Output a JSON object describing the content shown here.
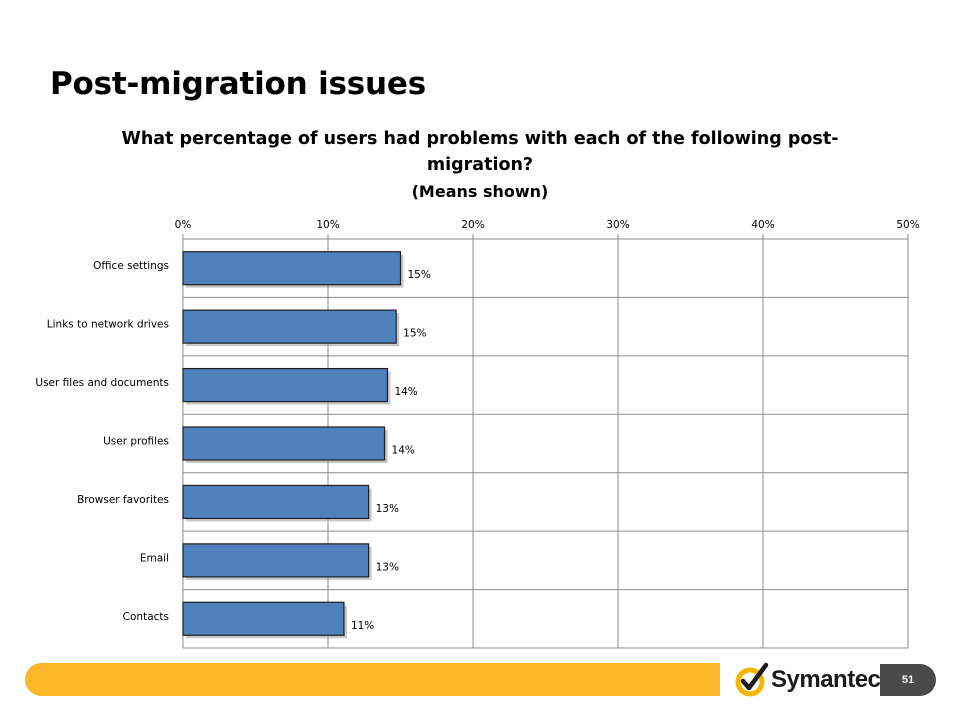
{
  "slide": {
    "title": "Post-migration issues",
    "page_number": "51"
  },
  "logo": {
    "brand": "Symantec",
    "trademark": ".",
    "icon": "checkmark-logo-icon"
  },
  "colors": {
    "bar_fill": "#4f81bd",
    "bar_border": "#1f1f1f",
    "grid": "#8c8c8c",
    "footer_bar": "#fbb829",
    "page_badge": "#4a4a4a",
    "logo_yellow": "#f7b500"
  },
  "chart_data": {
    "type": "bar",
    "orientation": "horizontal",
    "title": "What percentage of users had problems with each of the following post-migration?",
    "subtitle": "(Means shown)",
    "categories": [
      "Office settings",
      "Links to network drives",
      "User files and documents",
      "User profiles",
      "Browser favorites",
      "Email",
      "Contacts"
    ],
    "values": [
      15,
      14.7,
      14.1,
      13.9,
      12.8,
      12.8,
      11.1
    ],
    "data_labels": [
      "15%",
      "15%",
      "14%",
      "14%",
      "13%",
      "13%",
      "11%"
    ],
    "x_ticks": [
      "0%",
      "10%",
      "20%",
      "30%",
      "40%",
      "50%"
    ],
    "xlim": [
      0,
      50
    ],
    "x_axis_position": "top",
    "grid": true,
    "legend": "none"
  }
}
